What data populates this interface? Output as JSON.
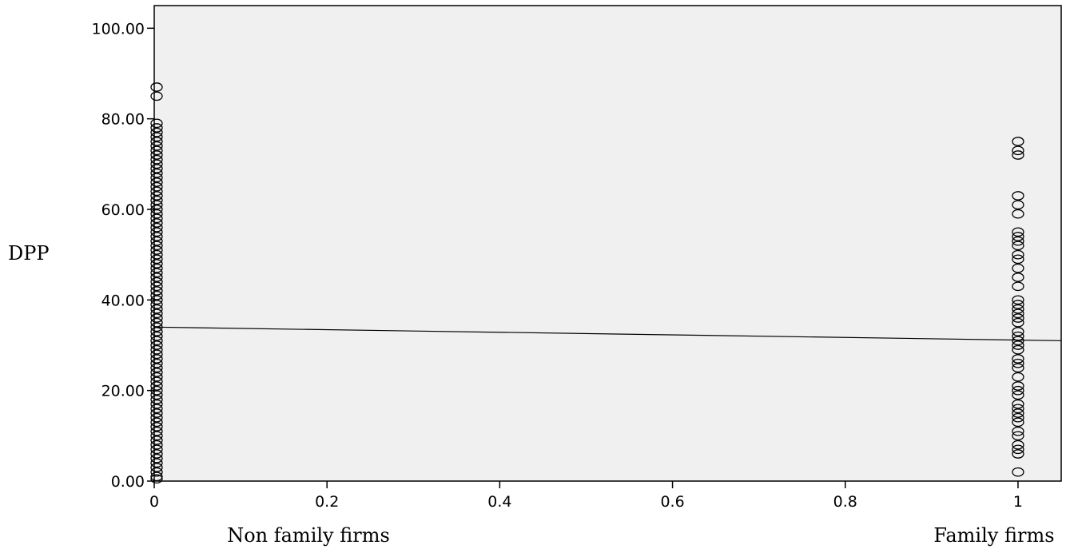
{
  "chart_data": {
    "type": "scatter",
    "title": "",
    "xlabel": "",
    "ylabel": "DPP",
    "xlim": [
      0,
      1.05
    ],
    "ylim": [
      0,
      105
    ],
    "x_ticks": [
      0,
      0.2,
      0.4,
      0.6,
      0.8,
      1
    ],
    "x_tick_labels": [
      "0",
      "0.2",
      "0.4",
      "0.6",
      "0.8",
      "1"
    ],
    "y_ticks": [
      0,
      20,
      40,
      60,
      80,
      100
    ],
    "y_tick_labels": [
      "0.00",
      "20.00",
      "40.00",
      "60.00",
      "80.00",
      "100.00"
    ],
    "category_labels": [
      {
        "x": 0,
        "label": "Non family firms"
      },
      {
        "x": 1,
        "label": "Family firms"
      }
    ],
    "grid": false,
    "legend": "none",
    "series": [
      {
        "x_value": 0,
        "y_values": [
          87,
          85,
          79,
          78,
          77,
          76,
          75,
          74,
          73,
          72,
          71,
          70,
          69,
          68,
          67,
          66,
          65,
          64,
          63,
          62,
          61,
          60,
          59,
          58,
          57,
          56,
          55,
          54,
          53,
          52,
          51,
          50,
          49,
          48,
          47,
          46,
          45,
          44,
          43,
          42,
          41,
          40,
          39,
          38,
          37,
          36,
          35,
          34,
          33,
          32,
          31,
          30,
          29,
          28,
          27,
          26,
          25,
          24,
          23,
          22,
          21,
          20,
          19,
          18,
          17,
          16,
          15,
          14,
          13,
          12,
          11,
          10,
          9,
          8,
          7,
          6,
          5,
          4,
          3,
          2,
          1,
          0.5
        ]
      },
      {
        "x_value": 1,
        "y_values": [
          75,
          73,
          72,
          63,
          61,
          59,
          55,
          54,
          53,
          52,
          50,
          49,
          47,
          45,
          43,
          40,
          39,
          38,
          37,
          36,
          35,
          33,
          32,
          31,
          30,
          29,
          27,
          26,
          25,
          23,
          21,
          20,
          19,
          17,
          16,
          15,
          14,
          13,
          11,
          10,
          8,
          7,
          6,
          2
        ]
      }
    ],
    "fit_line": {
      "x": [
        0,
        1.05
      ],
      "y": [
        34.0,
        31.0
      ]
    }
  }
}
